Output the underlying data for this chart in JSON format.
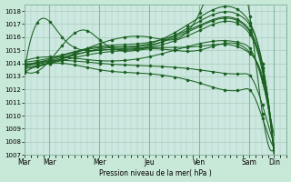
{
  "background_color": "#c8e8d8",
  "plot_bg_color": "#cce8e0",
  "grid_color": "#aaccbc",
  "line_color": "#1a6020",
  "xlabel": "Pression niveau de la mer( hPa )",
  "ylim": [
    1007,
    1018.5
  ],
  "yticks": [
    1007,
    1008,
    1009,
    1010,
    1011,
    1012,
    1013,
    1014,
    1015,
    1016,
    1017,
    1018
  ],
  "xlim": [
    0,
    252
  ],
  "x_day_positions": [
    0,
    24,
    72,
    120,
    168,
    216,
    240
  ],
  "x_day_labels": [
    "Mar",
    "Mar",
    "Mer",
    "Jeu",
    "Ven",
    "Sam",
    "Din"
  ],
  "lines": [
    {
      "pts": [
        [
          0,
          1013.8
        ],
        [
          24,
          1014.2
        ],
        [
          72,
          1015.0
        ],
        [
          120,
          1015.3
        ],
        [
          168,
          1017.2
        ],
        [
          210,
          1017.5
        ],
        [
          216,
          1017.0
        ],
        [
          240,
          1007.2
        ]
      ]
    },
    {
      "pts": [
        [
          0,
          1013.9
        ],
        [
          24,
          1014.3
        ],
        [
          72,
          1015.2
        ],
        [
          120,
          1015.5
        ],
        [
          168,
          1017.5
        ],
        [
          210,
          1017.8
        ],
        [
          216,
          1017.2
        ],
        [
          240,
          1007.1
        ]
      ]
    },
    {
      "pts": [
        [
          0,
          1014.0
        ],
        [
          24,
          1014.1
        ],
        [
          72,
          1015.1
        ],
        [
          120,
          1015.4
        ],
        [
          168,
          1016.8
        ],
        [
          210,
          1017.0
        ],
        [
          216,
          1016.5
        ],
        [
          240,
          1007.3
        ]
      ]
    },
    {
      "pts": [
        [
          0,
          1013.7
        ],
        [
          24,
          1014.0
        ],
        [
          72,
          1014.8
        ],
        [
          120,
          1015.2
        ],
        [
          168,
          1016.5
        ],
        [
          210,
          1016.8
        ],
        [
          216,
          1016.3
        ],
        [
          240,
          1007.0
        ]
      ]
    },
    {
      "pts": [
        [
          0,
          1014.1
        ],
        [
          24,
          1014.4
        ],
        [
          72,
          1015.3
        ],
        [
          120,
          1015.6
        ],
        [
          168,
          1016.9
        ],
        [
          210,
          1017.1
        ],
        [
          216,
          1016.6
        ],
        [
          240,
          1007.4
        ]
      ]
    },
    {
      "pts": [
        [
          0,
          1013.6
        ],
        [
          24,
          1014.0
        ],
        [
          72,
          1015.5
        ],
        [
          120,
          1016.0
        ],
        [
          168,
          1017.8
        ],
        [
          216,
          1018.0
        ],
        [
          230,
          1009.5
        ],
        [
          240,
          1007.5
        ]
      ]
    },
    {
      "pts": [
        [
          0,
          1013.5
        ],
        [
          24,
          1017.2
        ],
        [
          36,
          1016.0
        ],
        [
          72,
          1015.0
        ],
        [
          120,
          1015.2
        ],
        [
          168,
          1015.3
        ],
        [
          216,
          1014.8
        ],
        [
          228,
          1013.2
        ],
        [
          240,
          1007.2
        ]
      ]
    },
    {
      "pts": [
        [
          0,
          1013.4
        ],
        [
          24,
          1014.2
        ],
        [
          60,
          1016.5
        ],
        [
          72,
          1015.8
        ],
        [
          90,
          1015.0
        ],
        [
          120,
          1015.1
        ],
        [
          168,
          1015.0
        ],
        [
          216,
          1014.9
        ],
        [
          228,
          1013.0
        ],
        [
          240,
          1007.1
        ]
      ]
    },
    {
      "pts": [
        [
          0,
          1014.2
        ],
        [
          24,
          1014.5
        ],
        [
          72,
          1014.2
        ],
        [
          120,
          1014.5
        ],
        [
          168,
          1015.5
        ],
        [
          210,
          1015.5
        ],
        [
          216,
          1015.2
        ],
        [
          228,
          1012.8
        ],
        [
          240,
          1008.5
        ]
      ]
    },
    {
      "pts": [
        [
          0,
          1013.3
        ],
        [
          24,
          1014.0
        ],
        [
          72,
          1013.5
        ],
        [
          120,
          1013.2
        ],
        [
          168,
          1012.5
        ],
        [
          210,
          1012.0
        ],
        [
          216,
          1012.0
        ],
        [
          228,
          1010.0
        ],
        [
          240,
          1007.5
        ]
      ]
    },
    {
      "pts": [
        [
          0,
          1013.8
        ],
        [
          24,
          1014.2
        ],
        [
          72,
          1014.0
        ],
        [
          120,
          1013.8
        ],
        [
          168,
          1013.5
        ],
        [
          210,
          1013.2
        ],
        [
          216,
          1013.1
        ],
        [
          228,
          1011.0
        ],
        [
          240,
          1007.8
        ]
      ]
    }
  ]
}
